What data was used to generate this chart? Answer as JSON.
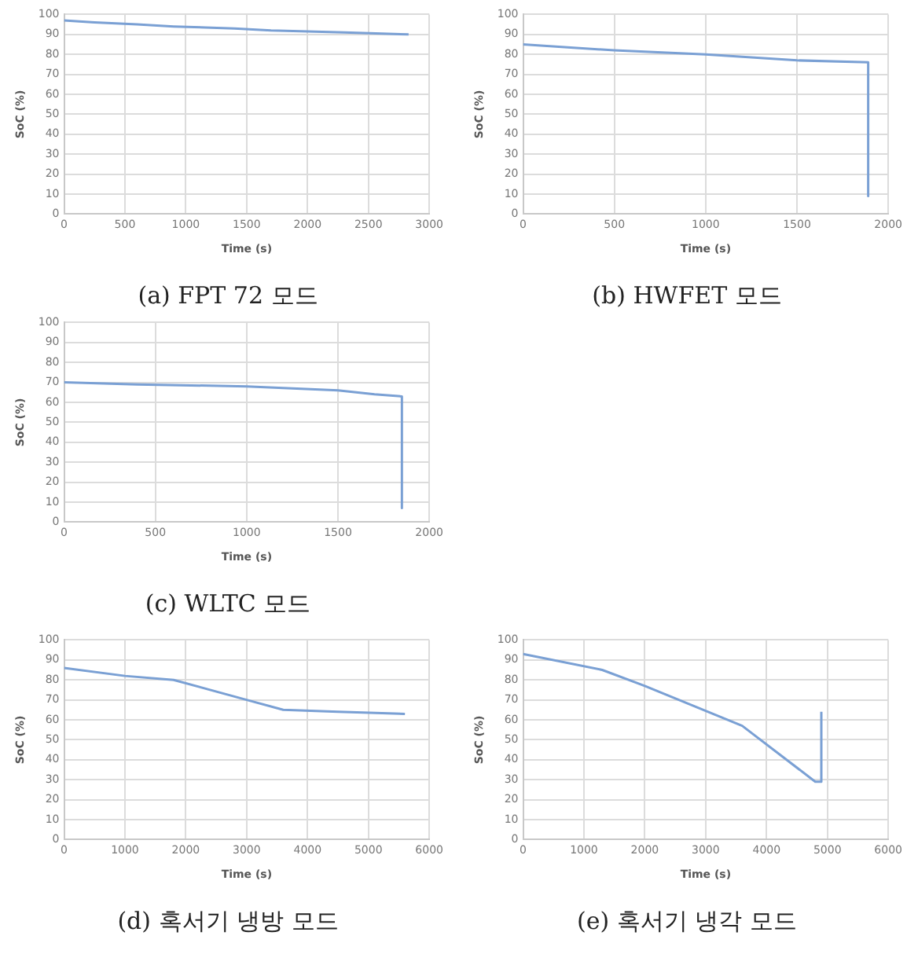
{
  "chart_data": [
    {
      "type": "line",
      "title": "(a) FPT 72 모드",
      "xlabel": "Time (s)",
      "ylabel": "SoC (%)",
      "xlim": [
        0,
        3000
      ],
      "xticks": [
        0,
        500,
        1000,
        1500,
        2000,
        2500,
        3000
      ],
      "ylim": [
        0,
        100
      ],
      "yticks": [
        0,
        10,
        20,
        30,
        40,
        50,
        60,
        70,
        80,
        90,
        100
      ],
      "grid": true,
      "legend": false,
      "marker": "none",
      "series": [
        {
          "color": "#7aa0d4",
          "x": [
            0,
            250,
            600,
            900,
            1400,
            1700,
            2300,
            2830
          ],
          "values": [
            97,
            96,
            95,
            94,
            93,
            92,
            91,
            90
          ]
        }
      ]
    },
    {
      "type": "line",
      "title": "(b) HWFET 모드",
      "xlabel": "Time (s)",
      "ylabel": "SoC (%)",
      "xlim": [
        0,
        2000
      ],
      "xticks": [
        0,
        500,
        1000,
        1500,
        2000
      ],
      "ylim": [
        0,
        100
      ],
      "yticks": [
        0,
        10,
        20,
        30,
        40,
        50,
        60,
        70,
        80,
        90,
        100
      ],
      "grid": true,
      "legend": false,
      "marker": "none",
      "series": [
        {
          "color": "#7aa0d4",
          "x": [
            0,
            500,
            1000,
            1500,
            1890,
            1890
          ],
          "values": [
            85,
            82,
            80,
            77,
            76,
            9
          ]
        }
      ]
    },
    {
      "type": "line",
      "title": "(c) WLTC 모드",
      "xlabel": "Time (s)",
      "ylabel": "SoC (%)",
      "xlim": [
        0,
        2000
      ],
      "xticks": [
        0,
        500,
        1000,
        1500,
        2000
      ],
      "ylim": [
        0,
        100
      ],
      "yticks": [
        0,
        10,
        20,
        30,
        40,
        50,
        60,
        70,
        80,
        90,
        100
      ],
      "grid": true,
      "legend": false,
      "marker": "none",
      "series": [
        {
          "color": "#7aa0d4",
          "x": [
            0,
            400,
            1000,
            1500,
            1700,
            1850,
            1850
          ],
          "values": [
            70,
            69,
            68,
            66,
            64,
            63,
            7
          ]
        }
      ]
    },
    {
      "type": "line",
      "title": "(d) 혹서기 냉방 모드",
      "xlabel": "Time (s)",
      "ylabel": "SoC (%)",
      "xlim": [
        0,
        6000
      ],
      "xticks": [
        0,
        1000,
        2000,
        3000,
        4000,
        5000,
        6000
      ],
      "ylim": [
        0,
        100
      ],
      "yticks": [
        0,
        10,
        20,
        30,
        40,
        50,
        60,
        70,
        80,
        90,
        100
      ],
      "grid": true,
      "legend": false,
      "marker": "none",
      "series": [
        {
          "color": "#7aa0d4",
          "x": [
            0,
            1000,
            1800,
            3000,
            3600,
            4500,
            5600
          ],
          "values": [
            86,
            82,
            80,
            70,
            65,
            64,
            63
          ]
        }
      ]
    },
    {
      "type": "line",
      "title": "(e) 혹서기 냉각 모드",
      "xlabel": "Time (s)",
      "ylabel": "SoC (%)",
      "xlim": [
        0,
        6000
      ],
      "xticks": [
        0,
        1000,
        2000,
        3000,
        4000,
        5000,
        6000
      ],
      "ylim": [
        0,
        100
      ],
      "yticks": [
        0,
        10,
        20,
        30,
        40,
        50,
        60,
        70,
        80,
        90,
        100
      ],
      "grid": true,
      "legend": false,
      "marker": "none",
      "series": [
        {
          "color": "#7aa0d4",
          "x": [
            0,
            1300,
            2000,
            3600,
            4800,
            4900,
            4900
          ],
          "values": [
            93,
            85,
            77,
            57,
            29,
            29,
            64
          ]
        }
      ]
    }
  ]
}
